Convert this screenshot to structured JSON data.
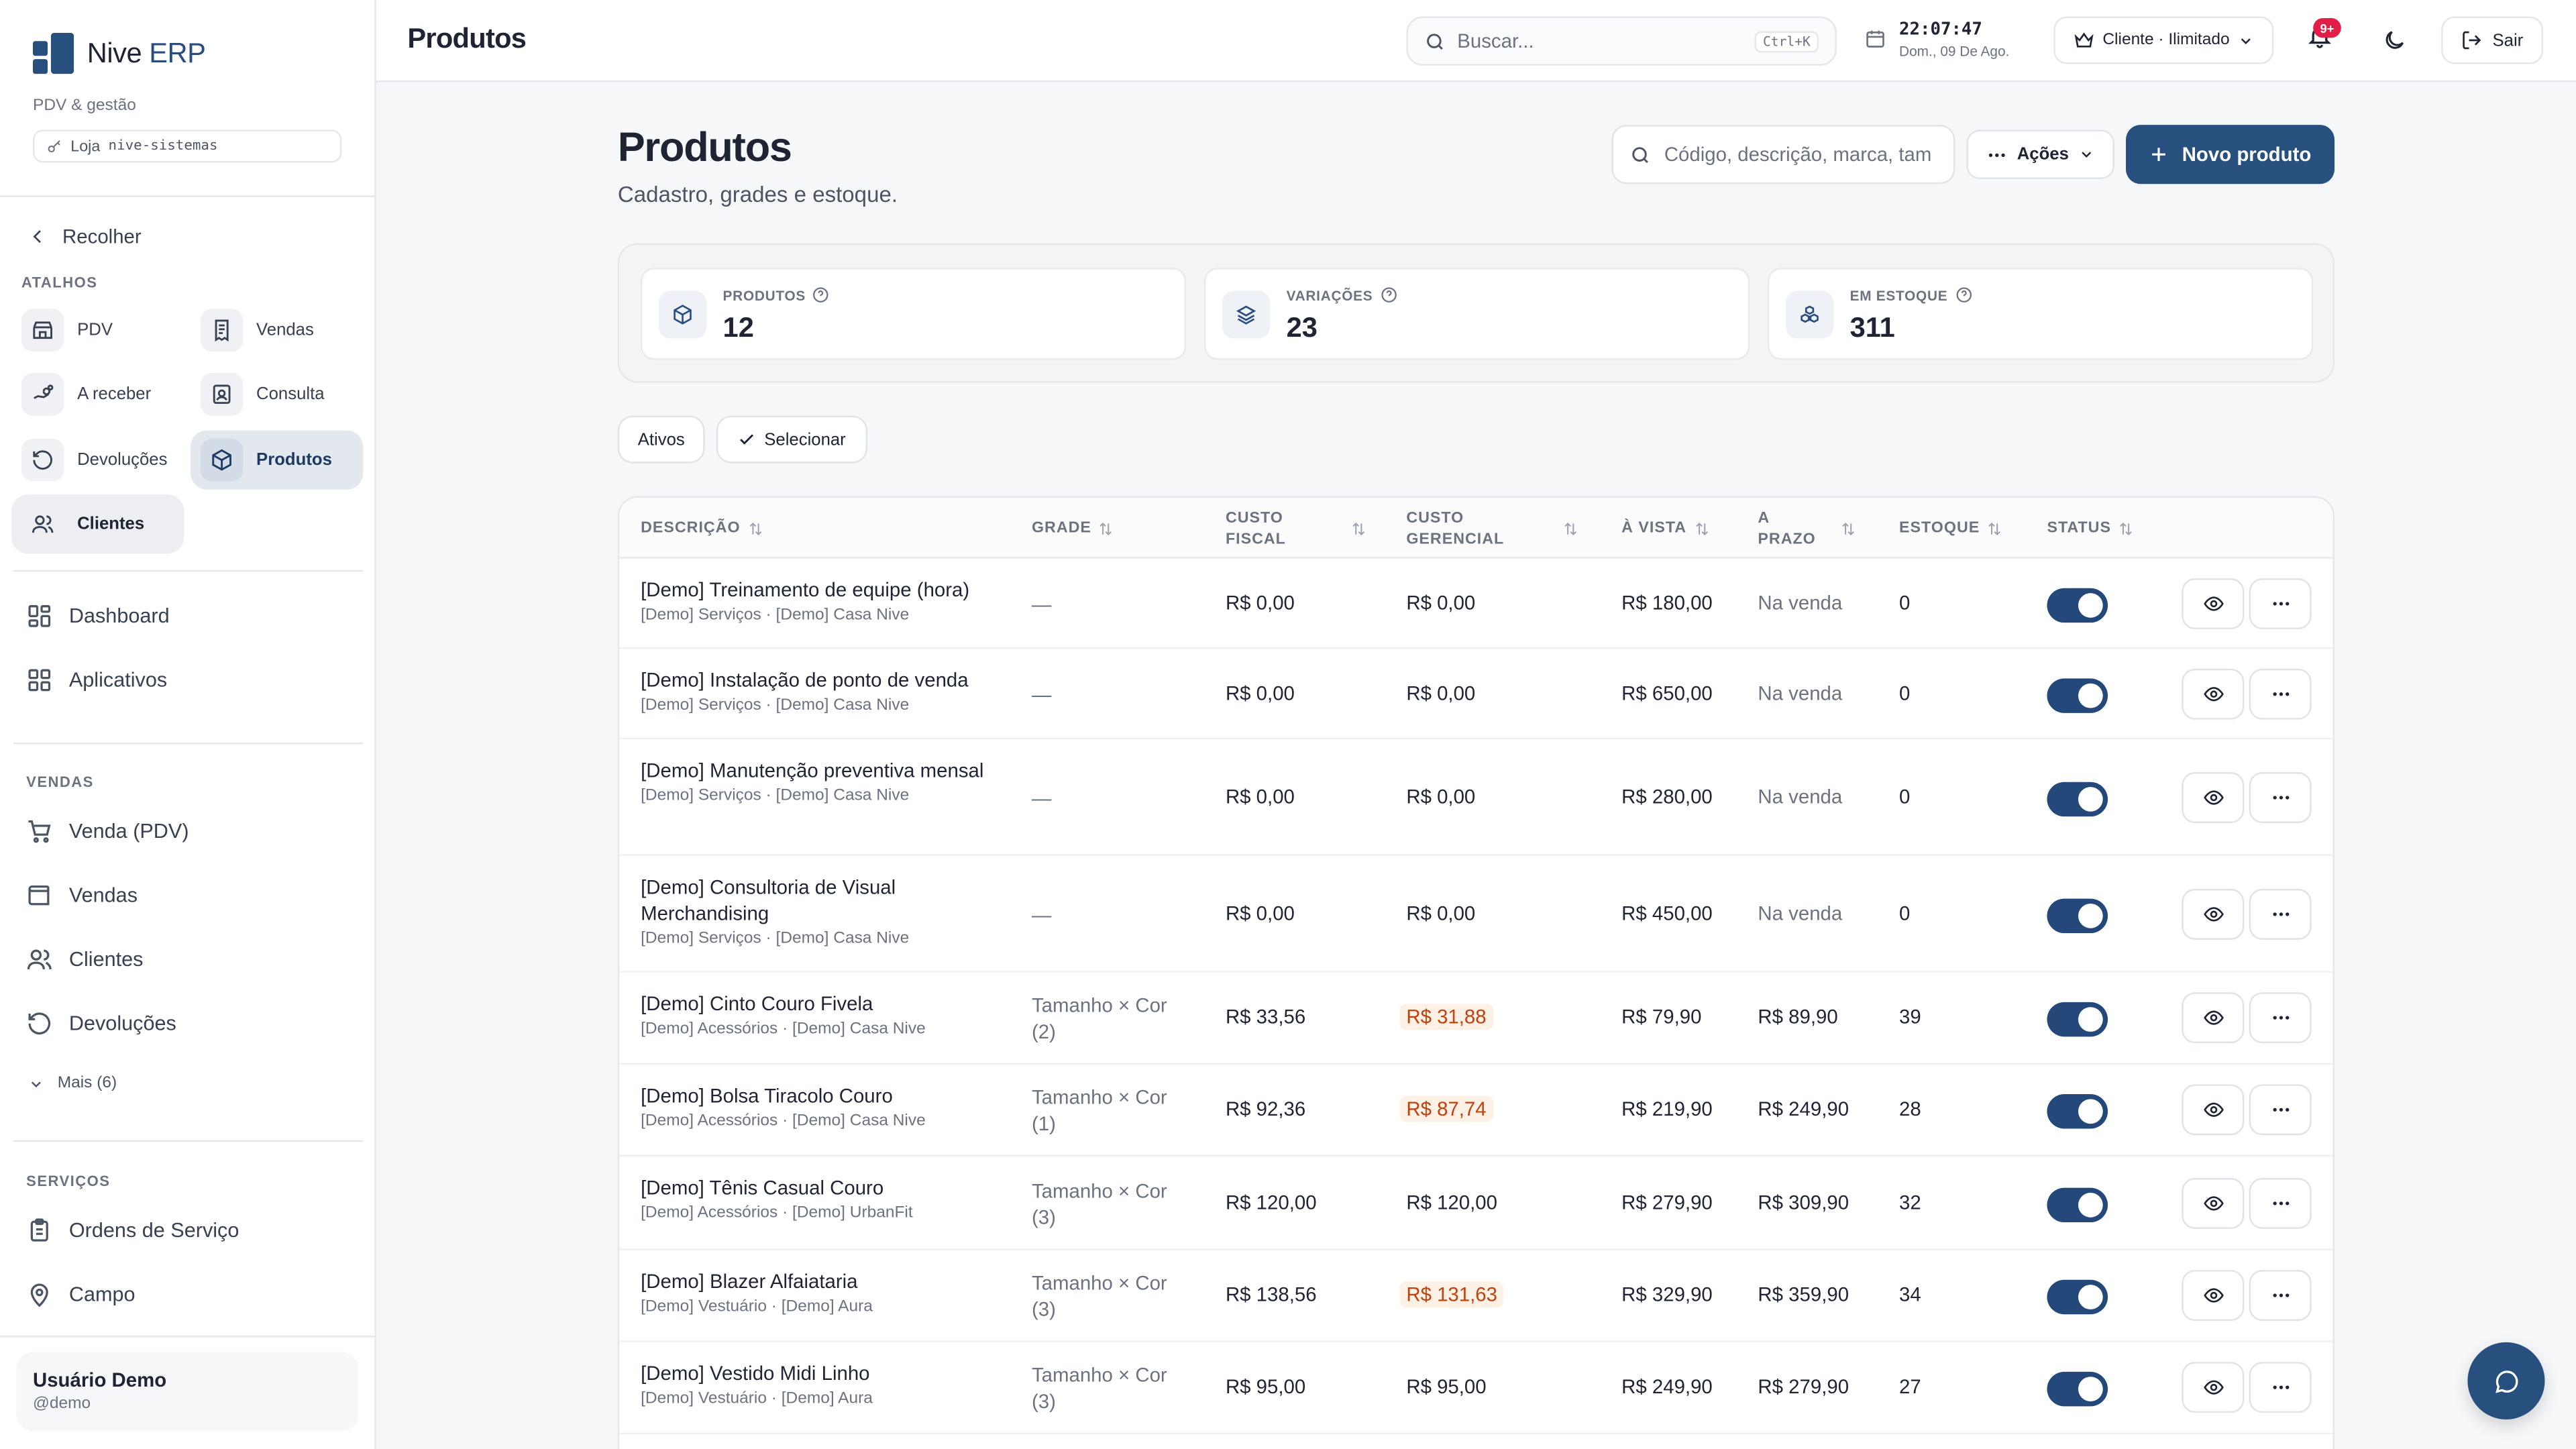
{
  "brand": {
    "name": "Nive",
    "name_accent": "ERP",
    "subtitle": "PDV & gestão",
    "store_label": "Loja",
    "store_id": "nive-sistemas"
  },
  "sidebar": {
    "collapse_label": "Recolher",
    "shortcuts_title": "ATALHOS",
    "shortcuts": [
      {
        "label": "PDV",
        "icon": "store-icon"
      },
      {
        "label": "Vendas",
        "icon": "receipt-icon"
      },
      {
        "label": "A receber",
        "icon": "hand-coins-icon"
      },
      {
        "label": "Consulta",
        "icon": "contact-card-icon"
      },
      {
        "label": "Devoluções",
        "icon": "rotate-left-icon"
      },
      {
        "label": "Produtos",
        "icon": "box-icon",
        "active": true
      },
      {
        "label": "Clientes",
        "icon": "users-icon"
      }
    ],
    "main_nav": [
      {
        "label": "Dashboard",
        "icon": "dashboard-icon"
      },
      {
        "label": "Aplicativos",
        "icon": "apps-icon"
      }
    ],
    "sales_title": "VENDAS",
    "sales_nav": [
      {
        "label": "Venda (PDV)",
        "icon": "cart-icon"
      },
      {
        "label": "Vendas",
        "icon": "wallet-icon"
      },
      {
        "label": "Clientes",
        "icon": "users-icon"
      },
      {
        "label": "Devoluções",
        "icon": "rotate-left-icon"
      }
    ],
    "more_label": "Mais (6)",
    "services_title": "SERVIÇOS",
    "services_nav": [
      {
        "label": "Ordens de Serviço",
        "icon": "clipboard-icon"
      },
      {
        "label": "Campo",
        "icon": "map-pin-icon"
      }
    ],
    "user": {
      "name": "Usuário Demo",
      "handle": "@demo"
    }
  },
  "topbar": {
    "title": "Produtos",
    "search_placeholder": "Buscar...",
    "search_shortcut": "Ctrl+K",
    "time": "22:07:47",
    "date": "Dom., 09 De Ago.",
    "plan_label": "Cliente · Ilimitado",
    "notifications_badge": "9+",
    "logout_label": "Sair"
  },
  "page": {
    "title": "Produtos",
    "subtitle": "Cadastro, grades e estoque.",
    "search_placeholder": "Código, descrição, marca, tam",
    "actions_label": "Ações",
    "new_label": "Novo produto"
  },
  "stats": [
    {
      "label": "PRODUTOS",
      "value": "12",
      "icon": "box-icon"
    },
    {
      "label": "VARIAÇÕES",
      "value": "23",
      "icon": "layers-icon"
    },
    {
      "label": "EM ESTOQUE",
      "value": "311",
      "icon": "boxes-icon"
    }
  ],
  "filters": {
    "active_label": "Ativos",
    "select_label": "Selecionar"
  },
  "table": {
    "columns": [
      "DESCRIÇÃO",
      "GRADE",
      "CUSTO FISCAL",
      "CUSTO GERENCIAL",
      "À VISTA",
      "A PRAZO",
      "ESTOQUE",
      "STATUS"
    ],
    "rows": [
      {
        "name": "[Demo] Treinamento de equipe (hora)",
        "sub": "[Demo] Serviços · [Demo] Casa Nive",
        "grade": "—",
        "custo_fiscal": "R$ 0,00",
        "custo_gerencial": "R$ 0,00",
        "gerencial_warn": false,
        "a_vista": "R$ 180,00",
        "a_prazo": "Na venda",
        "estoque": "0",
        "status": true
      },
      {
        "name": "[Demo] Instalação de ponto de venda",
        "sub": "[Demo] Serviços · [Demo] Casa Nive",
        "grade": "—",
        "custo_fiscal": "R$ 0,00",
        "custo_gerencial": "R$ 0,00",
        "gerencial_warn": false,
        "a_vista": "R$ 650,00",
        "a_prazo": "Na venda",
        "estoque": "0",
        "status": true
      },
      {
        "name": "[Demo] Manutenção preventiva mensal",
        "sub": "[Demo] Serviços · [Demo] Casa Nive",
        "grade": "—",
        "custo_fiscal": "R$ 0,00",
        "custo_gerencial": "R$ 0,00",
        "gerencial_warn": false,
        "a_vista": "R$ 280,00",
        "a_prazo": "Na venda",
        "estoque": "0",
        "status": true
      },
      {
        "name": "[Demo] Consultoria de Visual Merchandising",
        "sub": "[Demo] Serviços · [Demo] Casa Nive",
        "grade": "—",
        "custo_fiscal": "R$ 0,00",
        "custo_gerencial": "R$ 0,00",
        "gerencial_warn": false,
        "a_vista": "R$ 450,00",
        "a_prazo": "Na venda",
        "estoque": "0",
        "status": true
      },
      {
        "name": "[Demo] Cinto Couro Fivela",
        "sub": "[Demo] Acessórios · [Demo] Casa Nive",
        "grade": "Tamanho × Cor",
        "grade_count": "(2)",
        "custo_fiscal": "R$ 33,56",
        "custo_gerencial": "R$ 31,88",
        "gerencial_warn": true,
        "a_vista": "R$ 79,90",
        "a_prazo": "R$ 89,90",
        "estoque": "39",
        "status": true
      },
      {
        "name": "[Demo] Bolsa Tiracolo Couro",
        "sub": "[Demo] Acessórios · [Demo] Casa Nive",
        "grade": "Tamanho × Cor",
        "grade_count": "(1)",
        "custo_fiscal": "R$ 92,36",
        "custo_gerencial": "R$ 87,74",
        "gerencial_warn": true,
        "a_vista": "R$ 219,90",
        "a_prazo": "R$ 249,90",
        "estoque": "28",
        "status": true
      },
      {
        "name": "[Demo] Tênis Casual Couro",
        "sub": "[Demo] Acessórios · [Demo] UrbanFit",
        "grade": "Tamanho × Cor",
        "grade_count": "(3)",
        "custo_fiscal": "R$ 120,00",
        "custo_gerencial": "R$ 120,00",
        "gerencial_warn": false,
        "a_vista": "R$ 279,90",
        "a_prazo": "R$ 309,90",
        "estoque": "32",
        "status": true
      },
      {
        "name": "[Demo] Blazer Alfaiataria",
        "sub": "[Demo] Vestuário · [Demo] Aura",
        "grade": "Tamanho × Cor",
        "grade_count": "(3)",
        "custo_fiscal": "R$ 138,56",
        "custo_gerencial": "R$ 131,63",
        "gerencial_warn": true,
        "a_vista": "R$ 329,90",
        "a_prazo": "R$ 359,90",
        "estoque": "34",
        "status": true
      },
      {
        "name": "[Demo] Vestido Midi Linho",
        "sub": "[Demo] Vestuário · [Demo] Aura",
        "grade": "Tamanho × Cor",
        "grade_count": "(3)",
        "custo_fiscal": "R$ 95,00",
        "custo_gerencial": "R$ 95,00",
        "gerencial_warn": false,
        "a_vista": "R$ 249,90",
        "a_prazo": "R$ 279,90",
        "estoque": "27",
        "status": true
      }
    ]
  },
  "colors": {
    "primary": "#27507f",
    "toggle_on": "#24487a",
    "warn_bg": "#fdf1e6",
    "warn_text": "#c2410c",
    "badge": "#e11d48"
  }
}
